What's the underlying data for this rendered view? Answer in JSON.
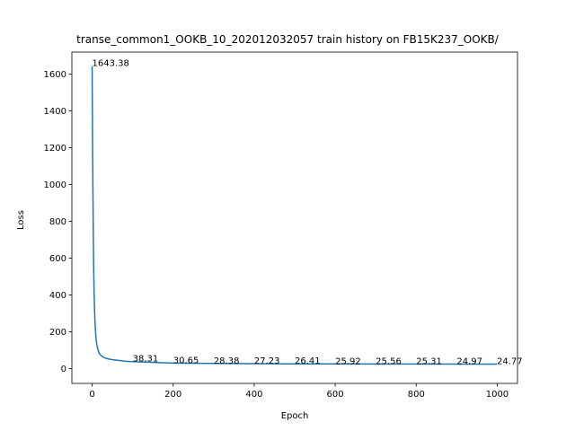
{
  "chart_data": {
    "type": "line",
    "title": "transe_common1_OOKB_10_202012032057 train history on FB15K237_OOKB/",
    "xlabel": "Epoch",
    "ylabel": "Loss",
    "xlim": [
      -50,
      1050
    ],
    "ylim": [
      -80,
      1720
    ],
    "x_ticks": [
      0,
      200,
      400,
      600,
      800,
      1000
    ],
    "y_ticks": [
      0,
      200,
      400,
      600,
      800,
      1000,
      1200,
      1400,
      1600
    ],
    "grid": false,
    "legend": "none",
    "series": [
      {
        "color": "#1f77b4",
        "x": [
          0,
          1,
          2,
          3,
          4,
          5,
          6,
          7,
          8,
          9,
          10,
          12,
          14,
          16,
          18,
          20,
          25,
          30,
          35,
          40,
          50,
          60,
          70,
          80,
          100,
          200,
          300,
          400,
          500,
          600,
          700,
          800,
          900,
          999
        ],
        "y": [
          1643.38,
          1250,
          950,
          700,
          520,
          400,
          320,
          260,
          215,
          180,
          155,
          125,
          105,
          92,
          83,
          76,
          66,
          60,
          56,
          53,
          49,
          46,
          43.5,
          41,
          38.31,
          30.65,
          28.38,
          27.23,
          26.41,
          25.92,
          25.56,
          25.31,
          24.97,
          24.77
        ]
      }
    ],
    "annotations": [
      {
        "x": 0,
        "y": 1643.38,
        "text": "1643.38"
      },
      {
        "x": 100,
        "y": 38.31,
        "text": "38.31"
      },
      {
        "x": 200,
        "y": 30.65,
        "text": "30.65"
      },
      {
        "x": 300,
        "y": 28.38,
        "text": "28.38"
      },
      {
        "x": 400,
        "y": 27.23,
        "text": "27.23"
      },
      {
        "x": 500,
        "y": 26.41,
        "text": "26.41"
      },
      {
        "x": 600,
        "y": 25.92,
        "text": "25.92"
      },
      {
        "x": 700,
        "y": 25.56,
        "text": "25.56"
      },
      {
        "x": 800,
        "y": 25.31,
        "text": "25.31"
      },
      {
        "x": 900,
        "y": 24.97,
        "text": "24.97"
      },
      {
        "x": 999,
        "y": 24.77,
        "text": "24.77"
      }
    ]
  }
}
